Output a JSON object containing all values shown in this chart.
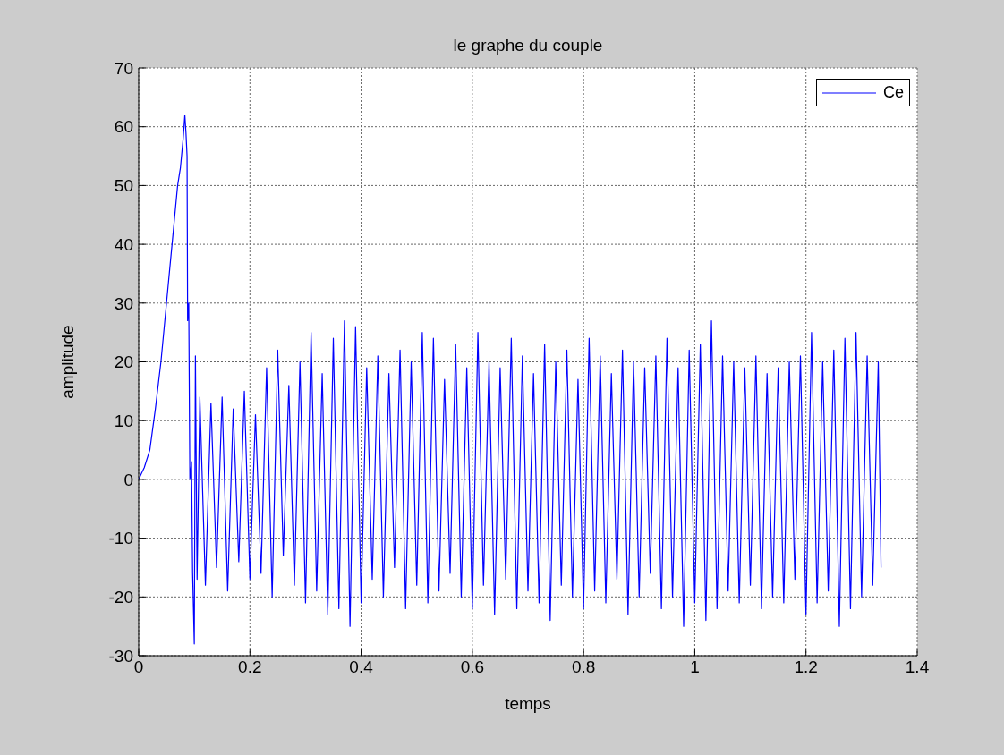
{
  "chart_data": {
    "type": "line",
    "title": "le  graphe du couple",
    "xlabel": "temps",
    "ylabel": "amplitude",
    "xlim": [
      0,
      1.4
    ],
    "xticks": [
      0,
      0.2,
      0.4,
      0.6,
      0.8,
      1,
      1.2,
      1.4
    ],
    "ylim": [
      -30,
      70
    ],
    "yticks": [
      -30,
      -20,
      -10,
      0,
      10,
      20,
      30,
      40,
      50,
      60,
      70
    ],
    "grid": true,
    "legend": "top right",
    "marker": "none",
    "line_style": "solid",
    "series": [
      {
        "name": "Ce",
        "color": "#0000ff",
        "x": [
          0,
          0.005,
          0.01,
          0.02,
          0.03,
          0.04,
          0.05,
          0.06,
          0.07,
          0.075,
          0.08,
          0.083,
          0.085,
          0.087,
          0.088,
          0.09,
          0.092,
          0.095,
          0.097,
          0.1,
          0.102,
          0.105,
          0.11,
          0.12,
          0.13,
          0.14,
          0.15,
          0.16,
          0.17,
          0.18,
          0.19,
          0.2,
          0.21,
          0.22,
          0.23,
          0.24,
          0.25,
          0.26,
          0.27,
          0.28,
          0.29,
          0.3,
          0.31,
          0.32,
          0.33,
          0.34,
          0.35,
          0.36,
          0.37,
          0.38,
          0.39,
          0.4,
          0.41,
          0.42,
          0.43,
          0.44,
          0.45,
          0.46,
          0.47,
          0.48,
          0.49,
          0.5,
          0.51,
          0.52,
          0.53,
          0.54,
          0.55,
          0.56,
          0.57,
          0.58,
          0.59,
          0.6,
          0.61,
          0.62,
          0.63,
          0.64,
          0.65,
          0.66,
          0.67,
          0.68,
          0.69,
          0.7,
          0.71,
          0.72,
          0.73,
          0.74,
          0.75,
          0.76,
          0.77,
          0.78,
          0.79,
          0.8,
          0.81,
          0.82,
          0.83,
          0.84,
          0.85,
          0.86,
          0.87,
          0.88,
          0.89,
          0.9,
          0.91,
          0.92,
          0.93,
          0.94,
          0.95,
          0.96,
          0.97,
          0.98,
          0.99,
          1,
          1.01,
          1.02,
          1.03,
          1.04,
          1.05,
          1.06,
          1.07,
          1.08,
          1.09,
          1.1,
          1.11,
          1.12,
          1.13,
          1.14,
          1.15,
          1.16,
          1.17,
          1.18,
          1.19,
          1.2,
          1.21,
          1.22,
          1.23,
          1.24,
          1.25,
          1.26,
          1.27,
          1.28,
          1.29,
          1.3,
          1.31,
          1.32,
          1.33,
          1.335
        ],
        "values": [
          0,
          1,
          2,
          5,
          12,
          20,
          30,
          40,
          50,
          53,
          58,
          62,
          59,
          55,
          27,
          30,
          0,
          3,
          -16,
          -28,
          21,
          -17,
          14,
          -18,
          13,
          -15,
          14,
          -19,
          12,
          -14,
          15,
          -17,
          11,
          -16,
          19,
          -20,
          22,
          -13,
          16,
          -18,
          20,
          -21,
          25,
          -19,
          18,
          -23,
          24,
          -22,
          27,
          -25,
          26,
          -21,
          19,
          -17,
          21,
          -20,
          18,
          -15,
          22,
          -22,
          20,
          -18,
          25,
          -21,
          24,
          -19,
          17,
          -16,
          23,
          -20,
          19,
          -22,
          25,
          -18,
          20,
          -23,
          19,
          -17,
          24,
          -22,
          21,
          -19,
          18,
          -21,
          23,
          -24,
          20,
          -18,
          22,
          -20,
          17,
          -22,
          24,
          -19,
          21,
          -21,
          18,
          -17,
          22,
          -23,
          20,
          -20,
          19,
          -16,
          21,
          -22,
          24,
          -20,
          19,
          -25,
          22,
          -21,
          23,
          -24,
          27,
          -22,
          21,
          -19,
          20,
          -21,
          19,
          -18,
          21,
          -22,
          18,
          -20,
          19,
          -21,
          20,
          -17,
          21,
          -23,
          25,
          -21,
          20,
          -19,
          22,
          -25,
          24,
          -22,
          25,
          -20,
          21,
          -18,
          20,
          -15
        ]
      }
    ]
  }
}
